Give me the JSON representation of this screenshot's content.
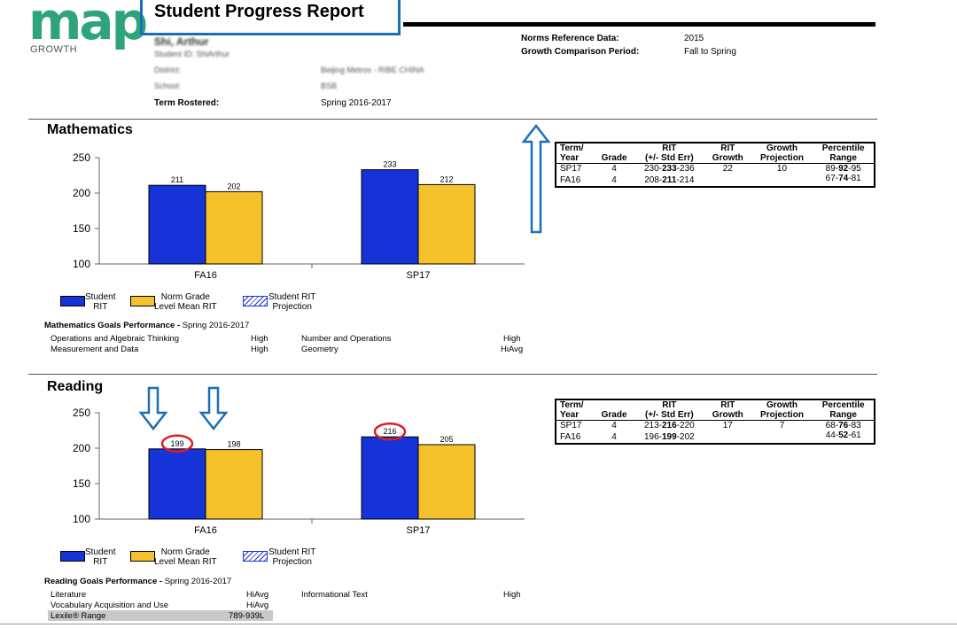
{
  "logo": {
    "word": "map",
    "sub": "GROWTH"
  },
  "report_title": "Student Progress Report",
  "student": {
    "name": "Shi, Arthur",
    "id_label": "Student ID: ShiArthur",
    "district_label": "District:",
    "district_value": "Beijing Metros - RIBE CHINA",
    "school_label": "School:",
    "school_value": "BSB",
    "term_label": "Term Rostered:",
    "term_value": "Spring 2016-2017"
  },
  "norms": {
    "ref_label": "Norms Reference Data:",
    "ref_value": "2015",
    "period_label": "Growth Comparison Period:",
    "period_value": "Fall to Spring"
  },
  "colors": {
    "student": "#1533d6",
    "norm": "#f5c22b",
    "annot": "#1a6fb5",
    "circle": "#e11b22"
  },
  "table_headers": {
    "term": [
      "Term/",
      "Year"
    ],
    "grade": "Grade",
    "rit": [
      "RIT",
      "(+/- Std Err)"
    ],
    "growth": [
      "RIT",
      "Growth"
    ],
    "proj": [
      "Growth",
      "Projection"
    ],
    "pct": [
      "Percentile",
      "Range"
    ]
  },
  "legend": {
    "student": [
      "Student",
      "RIT"
    ],
    "norm": [
      "Norm Grade",
      "Level Mean RIT"
    ],
    "proj": [
      "Student RIT",
      "Projection"
    ]
  },
  "math": {
    "title": "Mathematics",
    "table": [
      {
        "term": "SP17",
        "grade": "4",
        "rit_lo": "230-",
        "rit": "233",
        "rit_hi": "-236",
        "growth": "22",
        "proj": "10",
        "pct_lo": "89-",
        "pct": "92",
        "pct_hi": "-95"
      },
      {
        "term": "FA16",
        "grade": "4",
        "rit_lo": "208-",
        "rit": "211",
        "rit_hi": "-214",
        "growth": "",
        "proj": "",
        "pct_lo": "67-",
        "pct": "74",
        "pct_hi": "-81"
      }
    ],
    "goals_title": "Mathematics Goals Performance -",
    "goals_term": "Spring 2016-2017",
    "goals": [
      {
        "name": "Operations and Algebraic Thinking",
        "level": "High"
      },
      {
        "name": "Measurement and Data",
        "level": "High"
      },
      {
        "name": "Number and Operations",
        "level": "High"
      },
      {
        "name": "Geometry",
        "level": "HiAvg"
      }
    ]
  },
  "reading": {
    "title": "Reading",
    "table": [
      {
        "term": "SP17",
        "grade": "4",
        "rit_lo": "213-",
        "rit": "216",
        "rit_hi": "-220",
        "growth": "17",
        "proj": "7",
        "pct_lo": "68-",
        "pct": "76",
        "pct_hi": "-83"
      },
      {
        "term": "FA16",
        "grade": "4",
        "rit_lo": "196-",
        "rit": "199",
        "rit_hi": "-202",
        "growth": "",
        "proj": "",
        "pct_lo": "44-",
        "pct": "52",
        "pct_hi": "-61"
      }
    ],
    "goals_title": "Reading Goals Performance -",
    "goals_term": "Spring 2016-2017",
    "goals": [
      {
        "name": "Literature",
        "level": "HiAvg"
      },
      {
        "name": "Vocabulary Acquisition and Use",
        "level": "HiAvg"
      },
      {
        "name": "Informational Text",
        "level": "High"
      }
    ],
    "lexile_label": "Lexile® Range",
    "lexile_value": "789-939L"
  },
  "chart_data": [
    {
      "type": "bar",
      "title": "Mathematics",
      "categories": [
        "FA16",
        "SP17"
      ],
      "series": [
        {
          "name": "Student RIT",
          "values": [
            211,
            233
          ]
        },
        {
          "name": "Norm Grade Level Mean RIT",
          "values": [
            202,
            212
          ]
        }
      ],
      "ylim": [
        100,
        250
      ],
      "yticks": [
        100,
        150,
        200,
        250
      ]
    },
    {
      "type": "bar",
      "title": "Reading",
      "categories": [
        "FA16",
        "SP17"
      ],
      "series": [
        {
          "name": "Student RIT",
          "values": [
            199,
            216
          ]
        },
        {
          "name": "Norm Grade Level Mean RIT",
          "values": [
            198,
            205
          ]
        }
      ],
      "ylim": [
        100,
        250
      ],
      "yticks": [
        100,
        150,
        200,
        250
      ],
      "highlighted": [
        "199",
        "216"
      ]
    }
  ]
}
